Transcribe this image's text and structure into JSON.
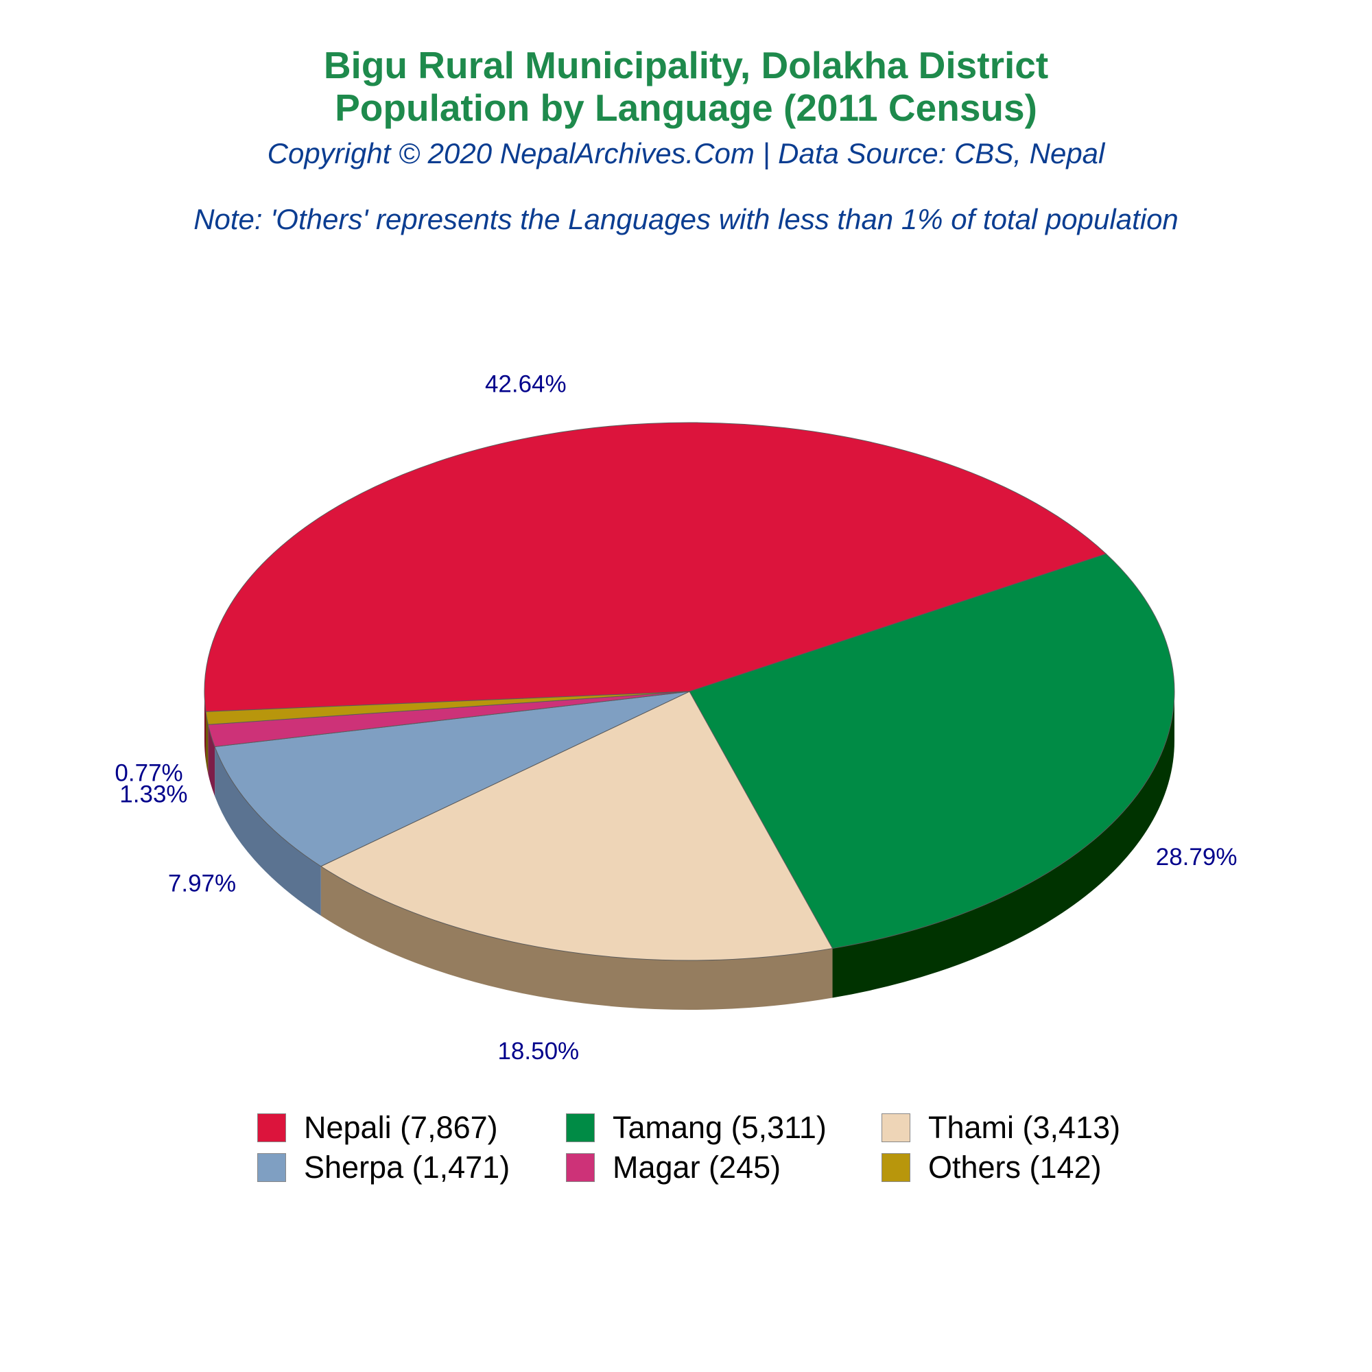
{
  "title": {
    "line1": "Bigu Rural Municipality, Dolakha District",
    "line2": "Population by Language (2011 Census)"
  },
  "subtitle": "Copyright © 2020 NepalArchives.Com | Data Source: CBS, Nepal",
  "note": "Note: 'Others' represents the Languages with less than 1% of total population",
  "legend": {
    "items": [
      {
        "label": "Nepali (7,867)"
      },
      {
        "label": "Tamang (5,311)"
      },
      {
        "label": "Thami (3,413)"
      },
      {
        "label": "Sherpa (1,471)"
      },
      {
        "label": "Magar (245)"
      },
      {
        "label": "Others (142)"
      }
    ]
  },
  "chart_data": {
    "type": "pie",
    "style": "3d-tilted",
    "legend_position": "bottom",
    "categories": [
      "Nepali",
      "Tamang",
      "Thami",
      "Sherpa",
      "Magar",
      "Others"
    ],
    "values": [
      7867,
      5311,
      3413,
      1471,
      245,
      142
    ],
    "percent_labels": [
      "42.64%",
      "28.79%",
      "18.50%",
      "7.97%",
      "1.33%",
      "0.77%"
    ],
    "colors": [
      "#dc143c",
      "#008b45",
      "#eed5b7",
      "#7f9fc2",
      "#cd3278",
      "#b8960c"
    ],
    "side_colors": [
      "#7a0b21",
      "#003300",
      "#957d5f",
      "#5b7391",
      "#7d1e49",
      "#6e5a07"
    ],
    "label_color": "#00008b"
  }
}
